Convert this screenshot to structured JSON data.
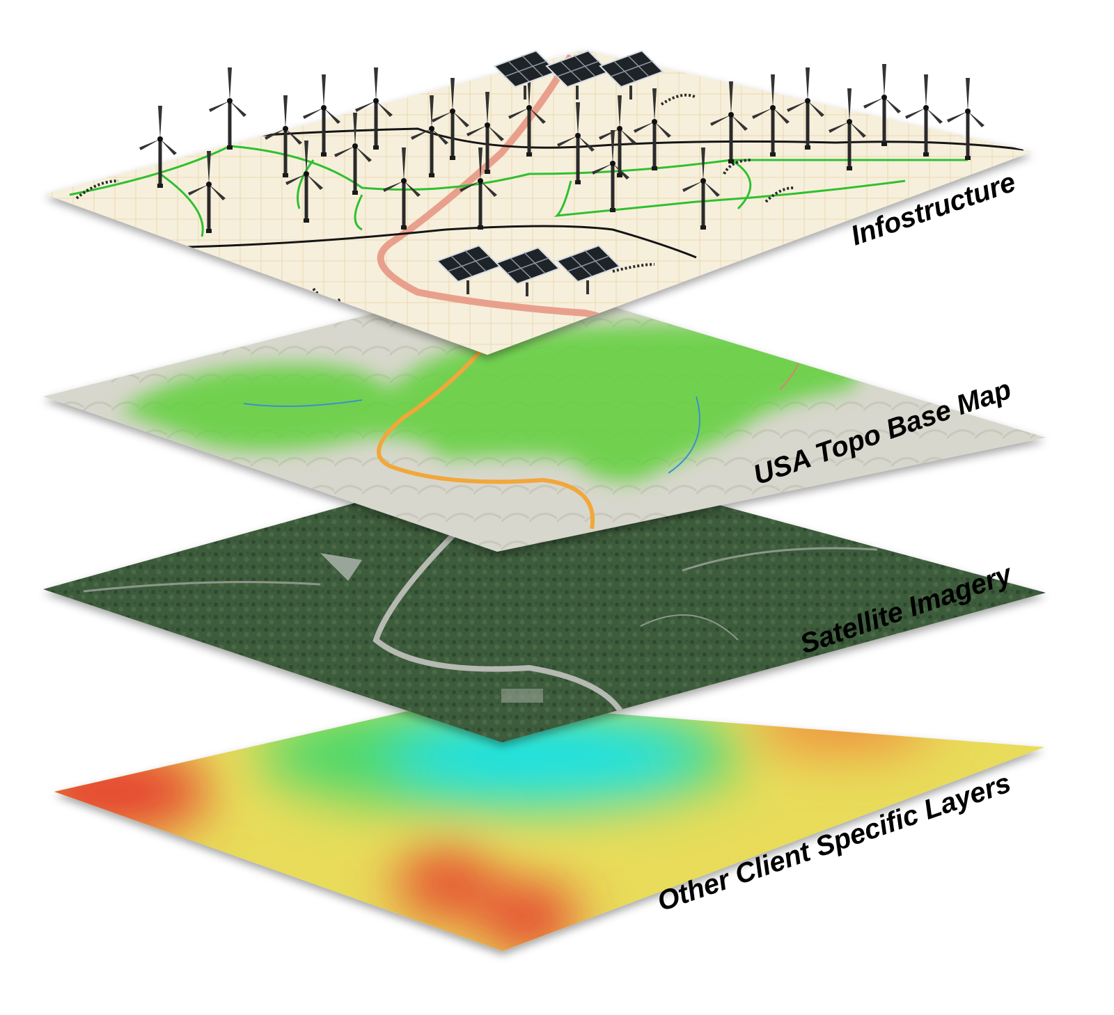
{
  "layers": [
    {
      "label": "Infostructure",
      "kind": "infrastructure"
    },
    {
      "label": "USA Topo Base Map",
      "kind": "topo"
    },
    {
      "label": "Satellite Imagery",
      "kind": "satellite"
    },
    {
      "label": "Other Client Specific Layers",
      "kind": "heatmap"
    }
  ],
  "colors": {
    "infra_bg": "#f6efdc",
    "infra_green_lines": "#2fc02f",
    "infra_black_lines": "#151515",
    "infra_highway": "#e8a08c",
    "topo_bg": "#d7d6cc",
    "topo_green": "#5fd03a",
    "topo_highway": "#f2a73a",
    "satellite_bg": "#3f5a3c",
    "heat_red": "#e53c2e",
    "heat_yellow": "#f0e24a",
    "heat_green": "#49d86a",
    "heat_cyan": "#14e2e6"
  },
  "icons": [
    "wind-turbine-icon",
    "solar-panel-icon"
  ]
}
